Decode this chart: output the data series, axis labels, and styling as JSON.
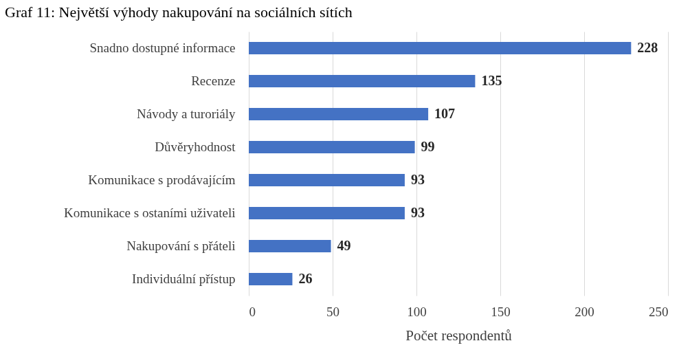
{
  "chart_data": {
    "type": "bar",
    "orientation": "horizontal",
    "title": "Graf 11: Největší výhody nakupování na sociálních sítích",
    "xlabel": "Počet respondentů",
    "categories": [
      "Snadno dostupné informace",
      "Recenze",
      "Návody a turoriály",
      "Důvěryhodnost",
      "Komunikace s prodávajícím",
      "Komunikace s ostaními uživateli",
      "Nakupování s přáteli",
      "Individuální přístup"
    ],
    "values": [
      228,
      135,
      107,
      99,
      93,
      93,
      49,
      26
    ],
    "color": "#4472c4",
    "xlim": [
      0,
      250
    ],
    "xticks": [
      0,
      50,
      100,
      150,
      200,
      250
    ],
    "grid": "x",
    "data_labels": true
  }
}
